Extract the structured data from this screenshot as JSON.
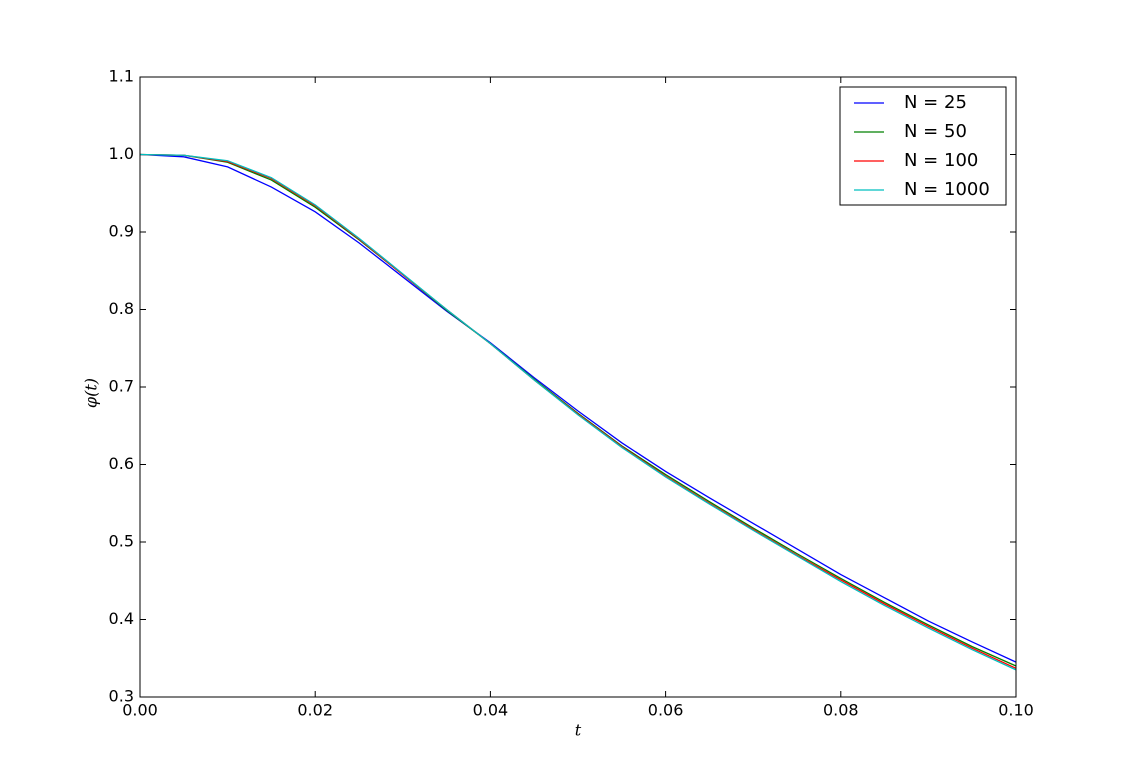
{
  "chart_data": {
    "type": "line",
    "xlabel": "t",
    "ylabel": "φ(t)",
    "x": [
      0,
      0.005,
      0.01,
      0.015,
      0.02,
      0.025,
      0.03,
      0.035,
      0.04,
      0.045,
      0.05,
      0.055,
      0.06,
      0.065,
      0.07,
      0.075,
      0.08,
      0.085,
      0.09,
      0.095,
      0.1
    ],
    "series": [
      {
        "name": "N = 25",
        "color": "#0000ff",
        "values": [
          1.0,
          0.997,
          0.984,
          0.958,
          0.926,
          0.886,
          0.842,
          0.798,
          0.757,
          0.712,
          0.669,
          0.628,
          0.591,
          0.557,
          0.524,
          0.491,
          0.458,
          0.428,
          0.398,
          0.371,
          0.345
        ]
      },
      {
        "name": "N = 50",
        "color": "#008000",
        "values": [
          1.0,
          0.999,
          0.99,
          0.967,
          0.932,
          0.89,
          0.845,
          0.799,
          0.756,
          0.71,
          0.666,
          0.624,
          0.587,
          0.552,
          0.518,
          0.485,
          0.453,
          0.422,
          0.393,
          0.365,
          0.34
        ]
      },
      {
        "name": "N = 100",
        "color": "#ff0000",
        "values": [
          1.0,
          0.999,
          0.991,
          0.969,
          0.934,
          0.891,
          0.845,
          0.8,
          0.756,
          0.709,
          0.665,
          0.623,
          0.585,
          0.55,
          0.516,
          0.483,
          0.451,
          0.42,
          0.391,
          0.363,
          0.337
        ]
      },
      {
        "name": "N = 1000",
        "color": "#00bfbf",
        "values": [
          1.0,
          0.999,
          0.992,
          0.97,
          0.935,
          0.892,
          0.846,
          0.8,
          0.756,
          0.709,
          0.664,
          0.622,
          0.584,
          0.549,
          0.515,
          0.482,
          0.449,
          0.418,
          0.389,
          0.361,
          0.335
        ]
      }
    ],
    "xlim": [
      0,
      0.1
    ],
    "xticks": [
      {
        "value": 0,
        "label": "0.00"
      },
      0.02,
      0.04,
      0.06,
      0.08,
      {
        "value": 0.1,
        "label": "0.10"
      }
    ],
    "ylim": [
      0.3,
      1.1
    ],
    "yticks": [
      0.3,
      0.4,
      0.5,
      0.6,
      0.7,
      0.8,
      0.9,
      {
        "value": 1,
        "label": "1.0"
      },
      1.1
    ],
    "grid": false,
    "legend": "upper right"
  }
}
